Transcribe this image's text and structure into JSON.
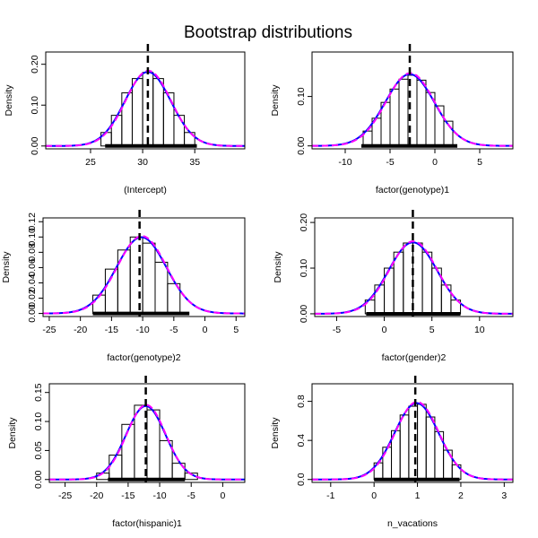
{
  "title": "Bootstrap distributions",
  "chart_data": [
    {
      "type": "histogram",
      "xlabel": "(Intercept)",
      "ylabel": "Density",
      "xlim": [
        20.7,
        39.8
      ],
      "ylim": [
        -0.007,
        0.23
      ],
      "xticks": [
        25,
        30,
        35
      ],
      "yticks": [
        0.0,
        0.1,
        0.2
      ],
      "ytick_labels": [
        "0.00",
        "0.10",
        "0.20"
      ],
      "bin_edges": [
        26,
        27,
        28,
        29,
        30,
        31,
        32,
        33,
        34,
        35
      ],
      "bar_heights": [
        0.033,
        0.075,
        0.13,
        0.165,
        0.18,
        0.165,
        0.13,
        0.075,
        0.033
      ],
      "density_mean": 30.5,
      "density_sd": 2.2,
      "point_estimate": 30.5,
      "interval": [
        26.4,
        35.2
      ]
    },
    {
      "type": "histogram",
      "xlabel": "factor(genotype)1",
      "ylabel": "Density",
      "xlim": [
        -13.7,
        8.7
      ],
      "ylim": [
        -0.006,
        0.19
      ],
      "xticks": [
        -10,
        -5,
        0,
        5
      ],
      "yticks": [
        0.0,
        0.1
      ],
      "ytick_labels": [
        "0.00",
        "0.10"
      ],
      "bin_edges": [
        -8,
        -7,
        -6,
        -5,
        -4,
        -3,
        -2,
        -1,
        0,
        1,
        2
      ],
      "bar_heights": [
        0.03,
        0.056,
        0.088,
        0.115,
        0.135,
        0.143,
        0.133,
        0.108,
        0.081,
        0.05
      ],
      "density_mean": -2.8,
      "density_sd": 2.75,
      "point_estimate": -2.8,
      "interval": [
        -8.2,
        2.5
      ]
    },
    {
      "type": "histogram",
      "xlabel": "factor(genotype)2",
      "ylabel": "Density",
      "xlim": [
        -26,
        6.4
      ],
      "ylim": [
        -0.004,
        0.125
      ],
      "xticks": [
        -25,
        -20,
        -15,
        -10,
        -5,
        0,
        5
      ],
      "yticks": [
        0.0,
        0.02,
        0.04,
        0.06,
        0.08,
        0.1,
        0.12
      ],
      "ytick_labels": [
        "0.00",
        "0.02",
        "0.04",
        "0.06",
        "0.08",
        "0.10",
        "0.12"
      ],
      "bin_edges": [
        -18,
        -16,
        -14,
        -12,
        -10,
        -8,
        -6,
        -4
      ],
      "bar_heights": [
        0.024,
        0.058,
        0.083,
        0.1,
        0.092,
        0.067,
        0.039
      ],
      "density_mean": -10.2,
      "density_sd": 4.0,
      "point_estimate": -10.5,
      "interval": [
        -18.0,
        -2.5
      ]
    },
    {
      "type": "histogram",
      "xlabel": "factor(gender)2",
      "ylabel": "Density",
      "xlim": [
        -7.3,
        13.5
      ],
      "ylim": [
        -0.006,
        0.21
      ],
      "xticks": [
        -5,
        0,
        5,
        10
      ],
      "yticks": [
        0.0,
        0.1,
        0.2
      ],
      "ytick_labels": [
        "0.00",
        "0.10",
        "0.20"
      ],
      "bin_edges": [
        -2,
        -1,
        0,
        1,
        2,
        3,
        4,
        5,
        6,
        7,
        8
      ],
      "bar_heights": [
        0.03,
        0.063,
        0.1,
        0.135,
        0.155,
        0.155,
        0.135,
        0.1,
        0.063,
        0.03
      ],
      "density_mean": 3.0,
      "density_sd": 2.55,
      "point_estimate": 3.0,
      "interval": [
        -1.9,
        8.0
      ]
    },
    {
      "type": "histogram",
      "xlabel": "factor(hispanic)1",
      "ylabel": "Density",
      "xlim": [
        -27.5,
        3.5
      ],
      "ylim": [
        -0.005,
        0.165
      ],
      "xticks": [
        -25,
        -20,
        -15,
        -10,
        -5,
        0
      ],
      "yticks": [
        0.0,
        0.05,
        0.1,
        0.15
      ],
      "ytick_labels": [
        "0.00",
        "0.05",
        "0.10",
        "0.15"
      ],
      "bin_edges": [
        -20,
        -18,
        -16,
        -14,
        -12,
        -10,
        -8,
        -6,
        -4
      ],
      "bar_heights": [
        0.011,
        0.042,
        0.095,
        0.128,
        0.12,
        0.067,
        0.028,
        0.011
      ],
      "density_mean": -12.2,
      "density_sd": 3.15,
      "point_estimate": -12.2,
      "interval": [
        -18.2,
        -6.0
      ]
    },
    {
      "type": "histogram",
      "xlabel": "n_vacations",
      "ylabel": "Density",
      "xlim": [
        -1.43,
        3.2
      ],
      "ylim": [
        -0.03,
        0.98
      ],
      "xticks": [
        -1,
        0,
        1,
        2,
        3
      ],
      "yticks": [
        0.0,
        0.4,
        0.8
      ],
      "ytick_labels": [
        "0.0",
        "0.4",
        "0.8"
      ],
      "bin_edges": [
        0.0,
        0.2,
        0.4,
        0.6,
        0.8,
        1.0,
        1.2,
        1.4,
        1.6,
        1.8,
        2.0
      ],
      "bar_heights": [
        0.17,
        0.33,
        0.5,
        0.66,
        0.75,
        0.77,
        0.64,
        0.49,
        0.3,
        0.15
      ],
      "density_mean": 0.98,
      "density_sd": 0.51,
      "point_estimate": 0.95,
      "interval": [
        0.0,
        1.97
      ]
    }
  ],
  "colors": {
    "bars": "#000000",
    "density_line": "#0000ff",
    "normal_overlay": "#ff00ff",
    "point_estimate_line": "#000000",
    "interval_bar": "#000000"
  }
}
